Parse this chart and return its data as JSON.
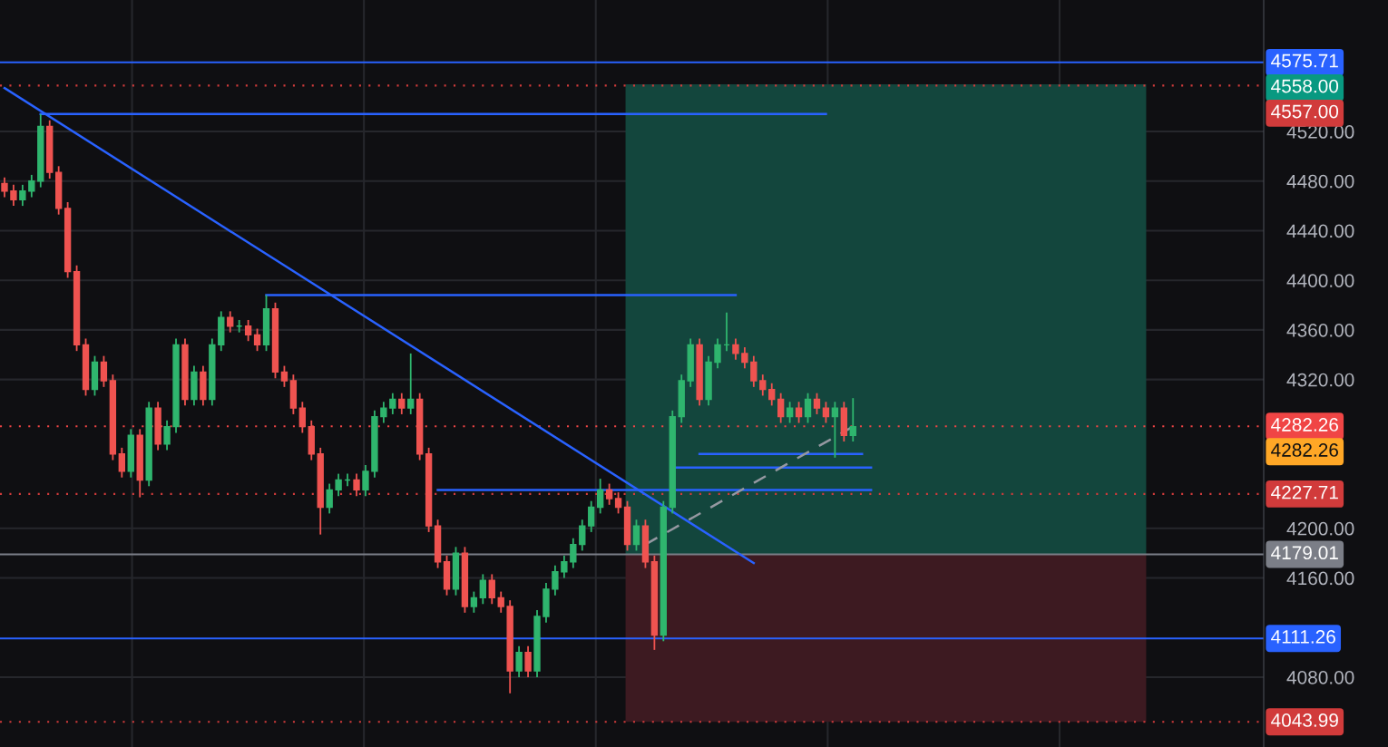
{
  "chart_data": {
    "type": "candlestick",
    "categories": [
      null,
      null,
      null,
      null,
      null,
      null,
      null,
      null,
      null,
      null,
      null,
      null,
      null,
      null,
      null,
      null,
      null,
      null,
      null,
      null,
      null,
      null,
      null,
      null,
      null,
      null,
      null,
      null,
      null,
      null,
      null,
      null,
      null,
      null,
      null,
      null,
      null,
      null,
      null,
      null,
      null,
      null,
      null,
      null,
      null,
      null,
      null,
      null,
      null,
      null,
      null,
      null,
      null,
      null,
      null,
      null,
      null,
      null,
      null,
      null,
      null,
      null,
      null,
      null,
      null,
      null,
      null,
      null,
      null,
      null,
      null,
      null,
      null,
      null,
      null,
      null,
      null,
      null,
      null,
      null,
      null,
      null,
      null,
      null,
      null,
      null,
      null,
      null,
      null,
      null,
      null,
      null,
      null,
      null,
      null,
      null,
      null,
      null,
      null,
      null,
      null,
      null,
      null,
      null,
      null,
      null,
      null,
      null,
      null,
      null,
      null,
      null,
      null,
      null,
      null,
      null,
      null,
      null,
      null,
      null,
      null,
      null,
      null,
      null,
      null,
      null,
      null,
      null,
      null,
      null,
      null,
      null,
      null,
      null,
      null,
      null,
      null,
      null,
      null,
      null
    ],
    "ohlc": [
      [
        4478,
        4483,
        4467,
        4472
      ],
      [
        4472,
        4477,
        4460,
        4465
      ],
      [
        4465,
        4477,
        4460,
        4472
      ],
      [
        4472,
        4485,
        4467,
        4480
      ],
      [
        4480,
        4534,
        4475,
        4524
      ],
      [
        4524,
        4529,
        4482,
        4487
      ],
      [
        4487,
        4492,
        4453,
        4458
      ],
      [
        4458,
        4463,
        4402,
        4407
      ],
      [
        4407,
        4412,
        4343,
        4348
      ],
      [
        4348,
        4353,
        4307,
        4312
      ],
      [
        4312,
        4339,
        4307,
        4334
      ],
      [
        4334,
        4339,
        4314,
        4319
      ],
      [
        4319,
        4324,
        4255,
        4260
      ],
      [
        4260,
        4265,
        4241,
        4246
      ],
      [
        4246,
        4280,
        4241,
        4275
      ],
      [
        4275,
        4280,
        4225,
        4239
      ],
      [
        4239,
        4302,
        4234,
        4297
      ],
      [
        4297,
        4302,
        4263,
        4268
      ],
      [
        4268,
        4287,
        4263,
        4282
      ],
      [
        4282,
        4353,
        4277,
        4348
      ],
      [
        4348,
        4353,
        4299,
        4304
      ],
      [
        4304,
        4331,
        4299,
        4326
      ],
      [
        4326,
        4331,
        4299,
        4304
      ],
      [
        4304,
        4353,
        4299,
        4348
      ],
      [
        4348,
        4375,
        4343,
        4370
      ],
      [
        4370,
        4375,
        4358,
        4363
      ],
      [
        4363,
        4368,
        4358,
        4363
      ],
      [
        4363,
        4368,
        4351,
        4356
      ],
      [
        4356,
        4361,
        4343,
        4348
      ],
      [
        4348,
        4388,
        4343,
        4377
      ],
      [
        4377,
        4382,
        4321,
        4326
      ],
      [
        4326,
        4331,
        4314,
        4319
      ],
      [
        4319,
        4324,
        4292,
        4297
      ],
      [
        4297,
        4302,
        4277,
        4282
      ],
      [
        4282,
        4287,
        4255,
        4260
      ],
      [
        4260,
        4265,
        4195,
        4217
      ],
      [
        4217,
        4236,
        4212,
        4231
      ],
      [
        4231,
        4244,
        4226,
        4239
      ],
      [
        4239,
        4244,
        4234,
        4239
      ],
      [
        4239,
        4244,
        4226,
        4231
      ],
      [
        4231,
        4251,
        4226,
        4246
      ],
      [
        4246,
        4295,
        4241,
        4290
      ],
      [
        4290,
        4302,
        4285,
        4297
      ],
      [
        4297,
        4309,
        4292,
        4304
      ],
      [
        4304,
        4309,
        4292,
        4297
      ],
      [
        4297,
        4341,
        4292,
        4304
      ],
      [
        4304,
        4309,
        4255,
        4260
      ],
      [
        4260,
        4265,
        4197,
        4202
      ],
      [
        4202,
        4207,
        4168,
        4173
      ],
      [
        4173,
        4178,
        4146,
        4151
      ],
      [
        4151,
        4185,
        4146,
        4180
      ],
      [
        4180,
        4185,
        4132,
        4137
      ],
      [
        4137,
        4149,
        4132,
        4144
      ],
      [
        4144,
        4163,
        4139,
        4158
      ],
      [
        4158,
        4163,
        4139,
        4144
      ],
      [
        4144,
        4149,
        4132,
        4137
      ],
      [
        4137,
        4142,
        4067,
        4085
      ],
      [
        4085,
        4105,
        4080,
        4100
      ],
      [
        4100,
        4105,
        4080,
        4085
      ],
      [
        4085,
        4134,
        4080,
        4129
      ],
      [
        4129,
        4156,
        4124,
        4151
      ],
      [
        4151,
        4170,
        4146,
        4165
      ],
      [
        4165,
        4178,
        4160,
        4173
      ],
      [
        4173,
        4192,
        4168,
        4187
      ],
      [
        4187,
        4207,
        4182,
        4202
      ],
      [
        4202,
        4222,
        4197,
        4217
      ],
      [
        4217,
        4240,
        4212,
        4231
      ],
      [
        4231,
        4236,
        4219,
        4224
      ],
      [
        4224,
        4229,
        4212,
        4217
      ],
      [
        4217,
        4222,
        4182,
        4187
      ],
      [
        4187,
        4207,
        4182,
        4202
      ],
      [
        4202,
        4207,
        4168,
        4173
      ],
      [
        4173,
        4178,
        4102,
        4114
      ],
      [
        4114,
        4222,
        4109,
        4217
      ],
      [
        4217,
        4295,
        4212,
        4290
      ],
      [
        4290,
        4324,
        4285,
        4319
      ],
      [
        4319,
        4353,
        4314,
        4348
      ],
      [
        4348,
        4353,
        4299,
        4304
      ],
      [
        4304,
        4339,
        4299,
        4334
      ],
      [
        4334,
        4353,
        4329,
        4348
      ],
      [
        4348,
        4374,
        4343,
        4348
      ],
      [
        4348,
        4353,
        4336,
        4341
      ],
      [
        4341,
        4346,
        4329,
        4334
      ],
      [
        4334,
        4339,
        4314,
        4319
      ],
      [
        4319,
        4324,
        4307,
        4312
      ],
      [
        4312,
        4317,
        4299,
        4304
      ],
      [
        4304,
        4309,
        4285,
        4290
      ],
      [
        4290,
        4302,
        4285,
        4297
      ],
      [
        4297,
        4302,
        4285,
        4290
      ],
      [
        4290,
        4309,
        4285,
        4304
      ],
      [
        4304,
        4309,
        4292,
        4297
      ],
      [
        4297,
        4302,
        4285,
        4290
      ],
      [
        4290,
        4302,
        4257,
        4297
      ],
      [
        4297,
        4302,
        4270,
        4275
      ],
      [
        4275,
        4305,
        4270,
        4282
      ],
      null,
      null,
      null,
      null,
      null,
      null,
      null,
      null,
      null,
      null,
      null,
      null,
      null,
      null,
      null,
      null,
      null,
      null,
      null,
      null,
      null,
      null,
      null,
      null,
      null,
      null,
      null,
      null,
      null,
      null,
      null,
      null,
      null,
      null,
      null,
      null,
      null,
      null,
      null,
      null,
      null,
      null,
      null,
      null,
      null
    ],
    "colors": [
      "#ef5350",
      "#ef5350",
      "#2fb56e",
      "#2fb56e",
      "#2fb56e",
      "#ef5350",
      "#ef5350",
      "#ef5350",
      "#ef5350",
      "#ef5350",
      "#2fb56e",
      "#ef5350",
      "#ef5350",
      "#ef5350",
      "#2fb56e",
      "#ef5350",
      "#2fb56e",
      "#ef5350",
      "#2fb56e",
      "#2fb56e",
      "#ef5350",
      "#2fb56e",
      "#ef5350",
      "#2fb56e",
      "#2fb56e",
      "#ef5350",
      "#2fb56e",
      "#ef5350",
      "#ef5350",
      "#2fb56e",
      "#ef5350",
      "#ef5350",
      "#ef5350",
      "#ef5350",
      "#ef5350",
      "#ef5350",
      "#2fb56e",
      "#2fb56e",
      "#2fb56e",
      "#ef5350",
      "#2fb56e",
      "#2fb56e",
      "#2fb56e",
      "#2fb56e",
      "#ef5350",
      "#2fb56e",
      "#ef5350",
      "#ef5350",
      "#ef5350",
      "#ef5350",
      "#2fb56e",
      "#ef5350",
      "#2fb56e",
      "#2fb56e",
      "#ef5350",
      "#ef5350",
      "#ef5350",
      "#2fb56e",
      "#ef5350",
      "#2fb56e",
      "#2fb56e",
      "#2fb56e",
      "#2fb56e",
      "#2fb56e",
      "#2fb56e",
      "#2fb56e",
      "#2fb56e",
      "#ef5350",
      "#ef5350",
      "#ef5350",
      "#2fb56e",
      "#ef5350",
      "#ef5350",
      "#2fb56e",
      "#2fb56e",
      "#2fb56e",
      "#2fb56e",
      "#ef5350",
      "#2fb56e",
      "#2fb56e",
      "#2fb56e",
      "#ef5350",
      "#ef5350",
      "#ef5350",
      "#ef5350",
      "#ef5350",
      "#ef5350",
      "#2fb56e",
      "#ef5350",
      "#2fb56e",
      "#ef5350",
      "#ef5350",
      "#2fb56e",
      "#ef5350",
      "#2fb56e",
      null,
      null,
      null,
      null,
      null,
      null,
      null,
      null,
      null,
      null,
      null,
      null,
      null,
      null,
      null,
      null,
      null,
      null,
      null,
      null,
      null,
      null,
      null,
      null,
      null,
      null,
      null,
      null,
      null,
      null,
      null,
      null,
      null,
      null,
      null,
      null,
      null,
      null,
      null,
      null,
      null,
      null,
      null,
      null,
      null
    ],
    "series": [
      {
        "type": "line",
        "color": "#2962ff",
        "values": [
          4555,
          null,
          null,
          null,
          null,
          null,
          null,
          null,
          null,
          null,
          null,
          null,
          null,
          null,
          null,
          null,
          null,
          null,
          null,
          null,
          null,
          null,
          null,
          null,
          null,
          null,
          null,
          null,
          null,
          null,
          null,
          null,
          null,
          null,
          null,
          null,
          null,
          null,
          null,
          null,
          null,
          null,
          null,
          null,
          null,
          null,
          null,
          null,
          null,
          null,
          null,
          null,
          null,
          null,
          null,
          null,
          null,
          null,
          null,
          null,
          null,
          null,
          null,
          null,
          null,
          null,
          null,
          null,
          null,
          null,
          null,
          null,
          null,
          null,
          null,
          null,
          null,
          null,
          null,
          null,
          null,
          null,
          null,
          4172,
          null,
          null,
          null,
          null,
          null,
          null,
          null,
          null,
          null,
          null,
          null,
          null,
          null,
          null,
          null,
          null,
          null,
          null,
          null,
          null,
          null,
          null,
          null,
          null,
          null,
          null,
          null,
          null,
          null,
          null,
          null,
          null,
          null,
          null,
          null,
          null,
          null,
          null,
          null,
          null,
          null,
          null,
          null,
          null,
          null,
          null,
          null,
          null,
          null,
          null,
          null,
          null,
          null,
          null,
          null,
          null
        ]
      },
      {
        "type": "line",
        "color": "#2962ff",
        "values": [
          null,
          null,
          null,
          null,
          4534,
          null,
          null,
          null,
          null,
          null,
          null,
          null,
          null,
          null,
          null,
          null,
          null,
          null,
          null,
          null,
          null,
          null,
          null,
          null,
          null,
          null,
          null,
          null,
          null,
          null,
          null,
          null,
          null,
          null,
          null,
          null,
          null,
          null,
          null,
          null,
          null,
          null,
          null,
          null,
          null,
          null,
          null,
          null,
          null,
          null,
          null,
          null,
          null,
          null,
          null,
          null,
          null,
          null,
          null,
          null,
          null,
          null,
          null,
          null,
          null,
          null,
          null,
          null,
          null,
          null,
          null,
          null,
          null,
          null,
          null,
          null,
          null,
          null,
          null,
          null,
          null,
          null,
          null,
          null,
          null,
          null,
          null,
          null,
          null,
          null,
          null,
          4534,
          null,
          null,
          null,
          null,
          null,
          null,
          null,
          null,
          null,
          null,
          null,
          null,
          null,
          null,
          null,
          null,
          null,
          null,
          null,
          null,
          null,
          null,
          null,
          null,
          null,
          null,
          null,
          null,
          null,
          null,
          null,
          null,
          null,
          null,
          null,
          null,
          null,
          null,
          null,
          null,
          null,
          null,
          null,
          null,
          null,
          null,
          null,
          null
        ]
      },
      {
        "type": "line",
        "color": "#2962ff",
        "values": [
          null,
          null,
          null,
          null,
          null,
          null,
          null,
          null,
          null,
          null,
          null,
          null,
          null,
          null,
          null,
          null,
          null,
          null,
          null,
          null,
          null,
          null,
          null,
          null,
          null,
          null,
          null,
          null,
          null,
          4388,
          null,
          null,
          null,
          null,
          null,
          null,
          null,
          null,
          null,
          null,
          null,
          null,
          null,
          null,
          null,
          null,
          null,
          null,
          null,
          null,
          null,
          null,
          null,
          null,
          null,
          null,
          null,
          null,
          null,
          null,
          null,
          null,
          null,
          null,
          null,
          null,
          null,
          null,
          null,
          null,
          null,
          null,
          null,
          null,
          null,
          null,
          null,
          null,
          null,
          null,
          null,
          4388,
          null,
          null,
          null,
          null,
          null,
          null,
          null,
          null,
          null,
          null,
          null,
          null,
          null,
          null,
          null,
          null,
          null,
          null,
          null,
          null,
          null,
          null,
          null,
          null,
          null,
          null,
          null,
          null,
          null,
          null,
          null,
          null,
          null,
          null,
          null,
          null,
          null,
          null,
          null,
          null,
          null,
          null,
          null,
          null,
          null,
          null,
          null,
          null,
          null,
          null,
          null,
          null,
          null,
          null,
          null,
          null,
          null,
          null
        ]
      },
      {
        "type": "line",
        "color": "#2962ff",
        "values": [
          null,
          null,
          null,
          null,
          null,
          null,
          null,
          null,
          null,
          null,
          null,
          null,
          null,
          null,
          null,
          null,
          null,
          null,
          null,
          null,
          null,
          null,
          null,
          null,
          null,
          null,
          null,
          null,
          null,
          null,
          null,
          null,
          null,
          null,
          null,
          null,
          null,
          null,
          null,
          null,
          null,
          null,
          null,
          null,
          null,
          null,
          null,
          null,
          4231,
          null,
          null,
          null,
          null,
          null,
          null,
          null,
          null,
          null,
          null,
          null,
          null,
          null,
          null,
          null,
          null,
          null,
          null,
          null,
          null,
          null,
          null,
          null,
          null,
          null,
          null,
          null,
          null,
          null,
          null,
          null,
          null,
          null,
          null,
          null,
          null,
          null,
          null,
          null,
          null,
          null,
          null,
          null,
          null,
          null,
          null,
          null,
          4231,
          null,
          null,
          null,
          null,
          null,
          null,
          null,
          null,
          null,
          null,
          null,
          null,
          null,
          null,
          null,
          null,
          null,
          null,
          null,
          null,
          null,
          null,
          null,
          null,
          null,
          null,
          null,
          null,
          null,
          null,
          null,
          null,
          null,
          null,
          null,
          null,
          null,
          null,
          null,
          null,
          null,
          null,
          null
        ]
      },
      {
        "type": "line",
        "color": "#2962ff",
        "values": [
          null,
          null,
          null,
          null,
          null,
          null,
          null,
          null,
          null,
          null,
          null,
          null,
          null,
          null,
          null,
          null,
          null,
          null,
          null,
          null,
          null,
          null,
          null,
          null,
          null,
          null,
          null,
          null,
          null,
          null,
          null,
          null,
          null,
          null,
          null,
          null,
          null,
          null,
          null,
          null,
          null,
          null,
          null,
          null,
          null,
          null,
          null,
          null,
          null,
          null,
          null,
          null,
          null,
          null,
          null,
          null,
          null,
          null,
          null,
          null,
          null,
          null,
          null,
          null,
          null,
          null,
          null,
          null,
          null,
          null,
          null,
          null,
          null,
          null,
          null,
          null,
          null,
          4260,
          null,
          null,
          null,
          null,
          null,
          null,
          null,
          null,
          null,
          null,
          null,
          null,
          null,
          null,
          null,
          null,
          null,
          4260,
          null,
          null,
          null,
          null,
          null,
          null,
          null,
          null,
          null,
          null,
          null,
          null,
          null,
          null,
          null,
          null,
          null,
          null,
          null,
          null,
          null,
          null,
          null,
          null,
          null,
          null,
          null,
          null,
          null,
          null,
          null,
          null,
          null,
          null,
          null,
          null,
          null,
          null,
          null,
          null,
          null,
          null,
          null,
          null
        ]
      },
      {
        "type": "line",
        "color": "#2962ff",
        "values": [
          null,
          null,
          null,
          null,
          null,
          null,
          null,
          null,
          null,
          null,
          null,
          null,
          null,
          null,
          null,
          null,
          null,
          null,
          null,
          null,
          null,
          null,
          null,
          null,
          null,
          null,
          null,
          null,
          null,
          null,
          null,
          null,
          null,
          null,
          null,
          null,
          null,
          null,
          null,
          null,
          null,
          null,
          null,
          null,
          null,
          null,
          null,
          null,
          null,
          null,
          null,
          null,
          null,
          null,
          null,
          null,
          null,
          null,
          null,
          null,
          null,
          null,
          null,
          null,
          null,
          null,
          null,
          null,
          null,
          null,
          null,
          null,
          null,
          null,
          4249,
          null,
          null,
          null,
          null,
          null,
          null,
          null,
          null,
          null,
          null,
          null,
          null,
          null,
          null,
          null,
          null,
          null,
          null,
          null,
          null,
          null,
          4249,
          null,
          null,
          null,
          null,
          null,
          null,
          null,
          null,
          null,
          null,
          null,
          null,
          null,
          null,
          null,
          null,
          null,
          null,
          null,
          null,
          null,
          null,
          null,
          null,
          null,
          null,
          null,
          null,
          null,
          null,
          null,
          null,
          null,
          null,
          null,
          null,
          null,
          null,
          null,
          null,
          null,
          null,
          null
        ]
      },
      {
        "type": "line",
        "color": "#9598a1",
        "line_style": "dashed",
        "values": [
          null,
          null,
          null,
          null,
          null,
          null,
          null,
          null,
          null,
          null,
          null,
          null,
          null,
          null,
          null,
          null,
          null,
          null,
          null,
          null,
          null,
          null,
          null,
          null,
          null,
          null,
          null,
          null,
          null,
          null,
          null,
          null,
          null,
          null,
          null,
          null,
          null,
          null,
          null,
          null,
          null,
          null,
          null,
          null,
          null,
          null,
          null,
          null,
          null,
          null,
          null,
          null,
          null,
          null,
          null,
          null,
          null,
          null,
          null,
          null,
          null,
          null,
          null,
          null,
          null,
          null,
          null,
          null,
          null,
          null,
          null,
          4187,
          null,
          null,
          null,
          null,
          null,
          null,
          null,
          null,
          null,
          null,
          null,
          null,
          null,
          null,
          null,
          null,
          null,
          null,
          null,
          null,
          null,
          null,
          4282,
          null,
          null,
          null,
          null,
          null,
          null,
          null,
          null,
          null,
          null,
          null,
          null,
          null,
          null,
          null,
          null,
          null,
          null,
          null,
          null,
          null,
          null,
          null,
          null,
          null,
          null,
          null,
          null,
          null,
          null,
          null,
          null,
          null,
          null,
          null,
          null,
          null,
          null,
          null,
          null,
          null,
          null,
          null,
          null,
          null
        ]
      }
    ],
    "bands": [
      {
        "axis": "y",
        "from": 4179.01,
        "to": 4558,
        "color": "#13463d"
      },
      {
        "axis": "y",
        "from": 4043.99,
        "to": 4179.01,
        "color": "#3d1a21"
      }
    ],
    "annotations": [
      "4558.00",
      "4282.26"
    ],
    "ref_lines": [
      {
        "axis": "y",
        "value": 4575.71,
        "label": "4575.71",
        "color": "#2962ff",
        "line_style": "solid"
      },
      {
        "axis": "y",
        "value": 4557,
        "label": "4557.00",
        "color": "#d13b3b",
        "line_style": "dotted"
      },
      {
        "axis": "y",
        "value": 4282.26,
        "label": "4282.26",
        "color": "#f04545",
        "line_style": "dotted"
      },
      {
        "axis": "y",
        "value": 4227.71,
        "label": "4227.71",
        "color": "#d13b3b",
        "line_style": "dotted"
      },
      {
        "axis": "y",
        "value": 4179.01,
        "label": "4179.01",
        "color": "#7b7e87",
        "line_style": "solid"
      },
      {
        "axis": "y",
        "value": 4111.26,
        "label": "4111.26",
        "color": "#2962ff",
        "line_style": "solid"
      },
      {
        "axis": "y",
        "value": 4043.99,
        "label": "4043.99",
        "color": "#d13b3b",
        "line_style": "dotted"
      }
    ],
    "legend": "right",
    "ylim": [
      4023.7,
      4626
    ],
    "yticks": [
      {
        "value": 4080,
        "label": "4080.00"
      },
      {
        "value": 4160,
        "label": "4160.00"
      },
      {
        "value": 4200,
        "label": "4200.00"
      },
      {
        "value": 4320,
        "label": "4320.00"
      },
      {
        "value": 4360,
        "label": "4360.00"
      },
      {
        "value": 4400,
        "label": "4400.00"
      },
      {
        "value": 4440,
        "label": "4440.00"
      },
      {
        "value": 4480,
        "label": "4480.00"
      },
      {
        "value": 4520,
        "label": "4520.00"
      }
    ],
    "grid": true
  }
}
